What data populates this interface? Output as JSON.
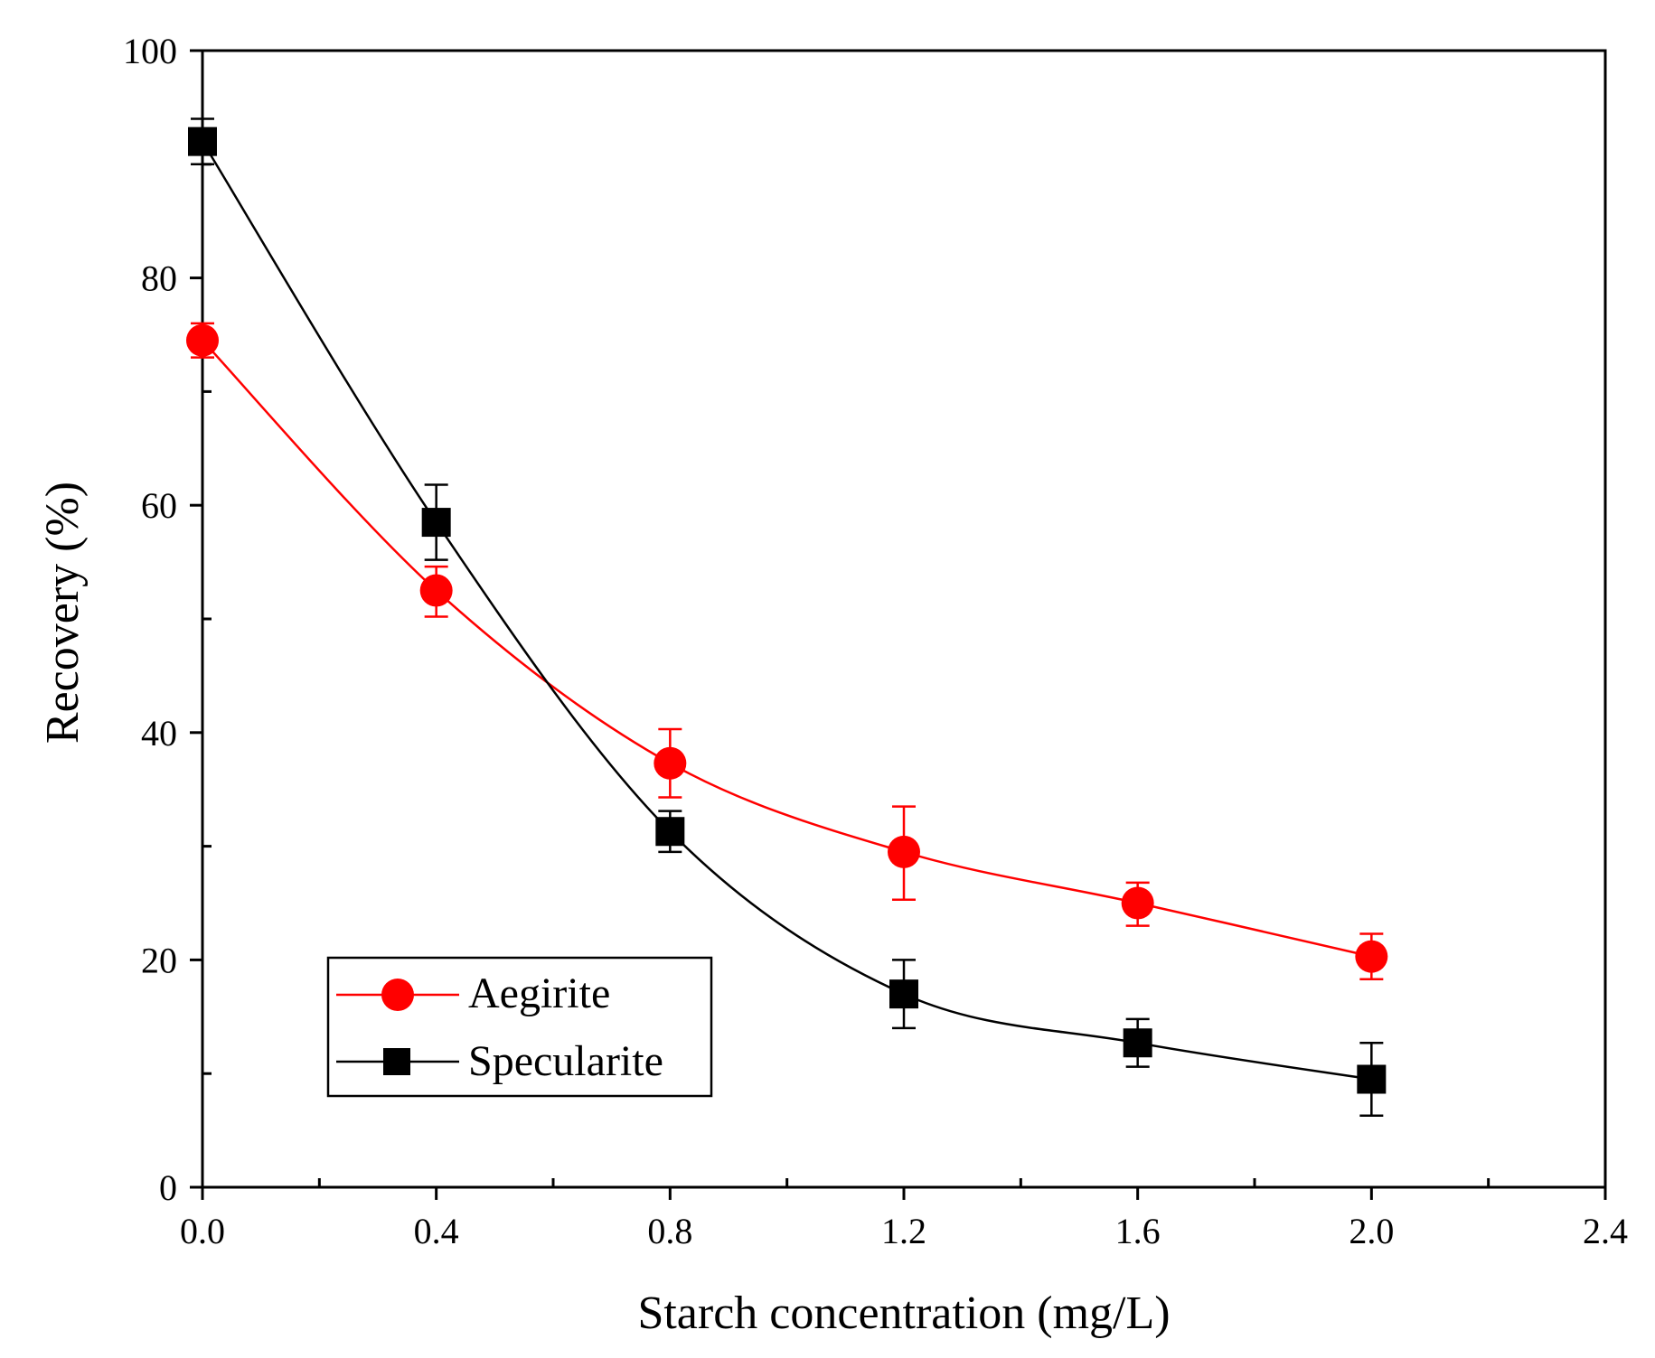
{
  "chart_data": {
    "type": "line",
    "xlabel": "Starch concentration (mg/L)",
    "ylabel": "Recovery (%)",
    "xlim": [
      0,
      2.4
    ],
    "ylim": [
      0,
      100
    ],
    "x_ticks": [
      "0.0",
      "0.4",
      "0.8",
      "1.2",
      "1.6",
      "2.0",
      "2.4"
    ],
    "y_ticks": [
      "0",
      "20",
      "40",
      "60",
      "80",
      "100"
    ],
    "x_tick_values": [
      0,
      0.4,
      0.8,
      1.2,
      1.6,
      2.0,
      2.4
    ],
    "y_tick_values": [
      0,
      20,
      40,
      60,
      80,
      100
    ],
    "x_minor_ticks": [
      0.2,
      0.6,
      1.0,
      1.4,
      1.8,
      2.2
    ],
    "y_minor_ticks": [
      10,
      30,
      50,
      70,
      90
    ],
    "grid": false,
    "legend_position": "bottom-left",
    "series": [
      {
        "name": "Aegirite",
        "color": "#ff0000",
        "marker": "circle",
        "x": [
          0,
          0.4,
          0.8,
          1.2,
          1.6,
          2.0
        ],
        "y": [
          74.5,
          52.5,
          37.3,
          29.5,
          25.0,
          20.3
        ],
        "yerr_low": [
          73.0,
          50.2,
          34.3,
          25.3,
          23.0,
          18.3
        ],
        "yerr_high": [
          76.0,
          54.6,
          40.3,
          33.5,
          26.8,
          22.3
        ]
      },
      {
        "name": "Specularite",
        "color": "#000000",
        "marker": "square",
        "x": [
          0,
          0.4,
          0.8,
          1.2,
          1.6,
          2.0
        ],
        "y": [
          92.0,
          58.5,
          31.3,
          17.0,
          12.7,
          9.5
        ],
        "yerr_low": [
          90.0,
          55.2,
          29.5,
          14.0,
          10.6,
          6.3
        ],
        "yerr_high": [
          94.0,
          61.8,
          33.1,
          20.0,
          14.8,
          12.7
        ]
      }
    ]
  }
}
